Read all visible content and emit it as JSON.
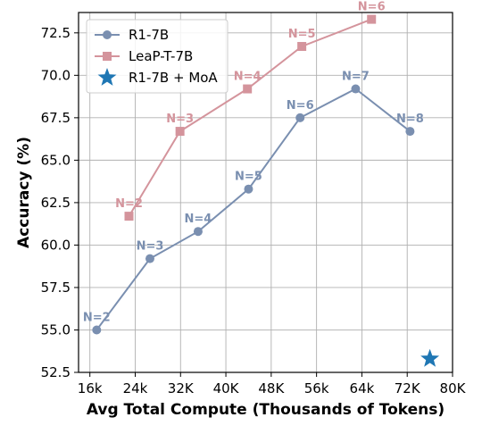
{
  "chart_data": {
    "type": "line",
    "title": "",
    "xlabel": "Avg Total Compute (Thousands of Tokens)",
    "ylabel": "Accuracy (%)",
    "xlim": [
      14,
      80
    ],
    "ylim": [
      52.5,
      73.7
    ],
    "x_ticks": [
      16,
      24,
      32,
      40,
      48,
      56,
      64,
      72,
      80
    ],
    "x_tick_labels": [
      "16k",
      "24k",
      "32K",
      "40K",
      "48K",
      "56k",
      "64k",
      "72K",
      "80K"
    ],
    "y_ticks": [
      52.5,
      55.0,
      57.5,
      60.0,
      62.5,
      65.0,
      67.5,
      70.0,
      72.5
    ],
    "y_tick_labels": [
      "52.5",
      "55.0",
      "57.5",
      "60.0",
      "62.5",
      "65.0",
      "67.5",
      "70.0",
      "72.5"
    ],
    "grid": true,
    "legend_position": "top-left",
    "series": [
      {
        "name": "R1-7B",
        "color": "#7a8fb0",
        "marker": "circle",
        "x": [
          17.2,
          26.6,
          35.1,
          44.0,
          53.1,
          62.9,
          72.5
        ],
        "y": [
          55.0,
          59.2,
          60.8,
          63.3,
          67.5,
          69.2,
          66.7
        ],
        "labels": [
          "N=2",
          "N=3",
          "N=4",
          "N=5",
          "N=6",
          "N=7",
          "N=8"
        ]
      },
      {
        "name": "LeaP-T-7B",
        "color": "#d4949c",
        "marker": "square",
        "x": [
          22.9,
          31.9,
          43.8,
          53.4,
          65.7
        ],
        "y": [
          61.7,
          66.7,
          69.2,
          71.7,
          73.3
        ],
        "labels": [
          "N=2",
          "N=3",
          "N=4",
          "N=5",
          "N=6"
        ]
      },
      {
        "name": "R1-7B + MoA",
        "color": "#1f77b4",
        "marker": "star",
        "x": [
          76.0
        ],
        "y": [
          53.3
        ],
        "labels": []
      }
    ]
  }
}
